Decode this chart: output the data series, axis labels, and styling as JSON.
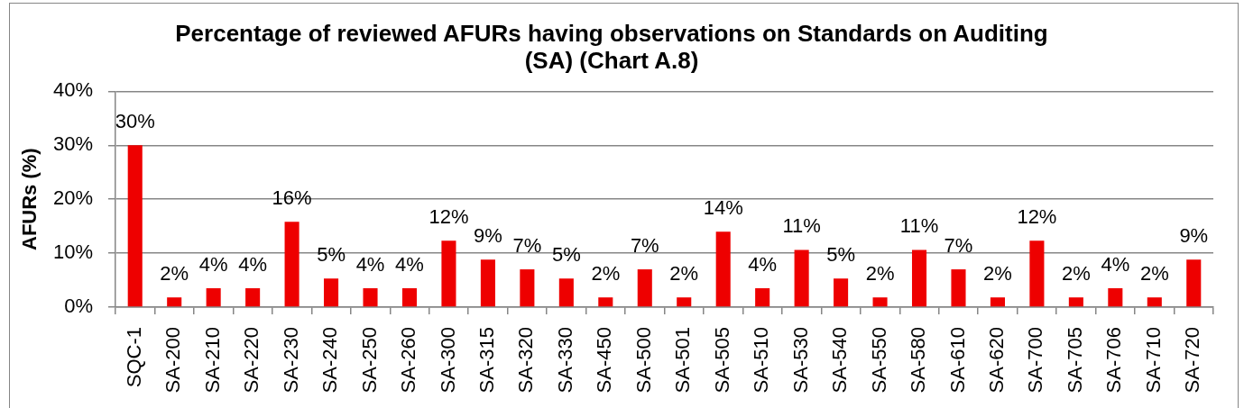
{
  "chart_data": {
    "type": "bar",
    "title": "Percentage of reviewed AFURs having observations on Standards on Auditing (SA) (Chart A.8)",
    "ylabel": "AFURs (%)",
    "categories": [
      "SQC-1",
      "SA-200",
      "SA-210",
      "SA-220",
      "SA-230",
      "SA-240",
      "SA-250",
      "SA-260",
      "SA-300",
      "SA-315",
      "SA-320",
      "SA-330",
      "SA-450",
      "SA-500",
      "SA-501",
      "SA-505",
      "SA-510",
      "SA-530",
      "SA-540",
      "SA-550",
      "SA-580",
      "SA-610",
      "SA-620",
      "SA-700",
      "SA-705",
      "SA-706",
      "SA-710",
      "SA-720"
    ],
    "values": [
      30,
      1.8,
      3.5,
      3.5,
      15.8,
      5.3,
      3.5,
      3.5,
      12.3,
      8.8,
      7.0,
      5.3,
      1.8,
      7.0,
      1.8,
      14.0,
      3.5,
      10.6,
      5.3,
      1.8,
      10.6,
      7.0,
      1.8,
      12.3,
      1.8,
      3.5,
      1.8,
      8.8
    ],
    "value_labels": [
      "30%",
      "2%",
      "4%",
      "4%",
      "16%",
      "5%",
      "4%",
      "4%",
      "12%",
      "9%",
      "7%",
      "5%",
      "2%",
      "7%",
      "2%",
      "14%",
      "4%",
      "11%",
      "5%",
      "2%",
      "11%",
      "7%",
      "2%",
      "12%",
      "2%",
      "4%",
      "2%",
      "9%"
    ],
    "color": "#ee0000",
    "ylim": [
      0,
      40
    ],
    "yticks": [
      {
        "value": 0,
        "label": "0%"
      },
      {
        "value": 10,
        "label": "10%"
      },
      {
        "value": 20,
        "label": "20%"
      },
      {
        "value": 30,
        "label": "30%"
      },
      {
        "value": 40,
        "label": "40%"
      }
    ],
    "grid": "y",
    "legend": false
  }
}
